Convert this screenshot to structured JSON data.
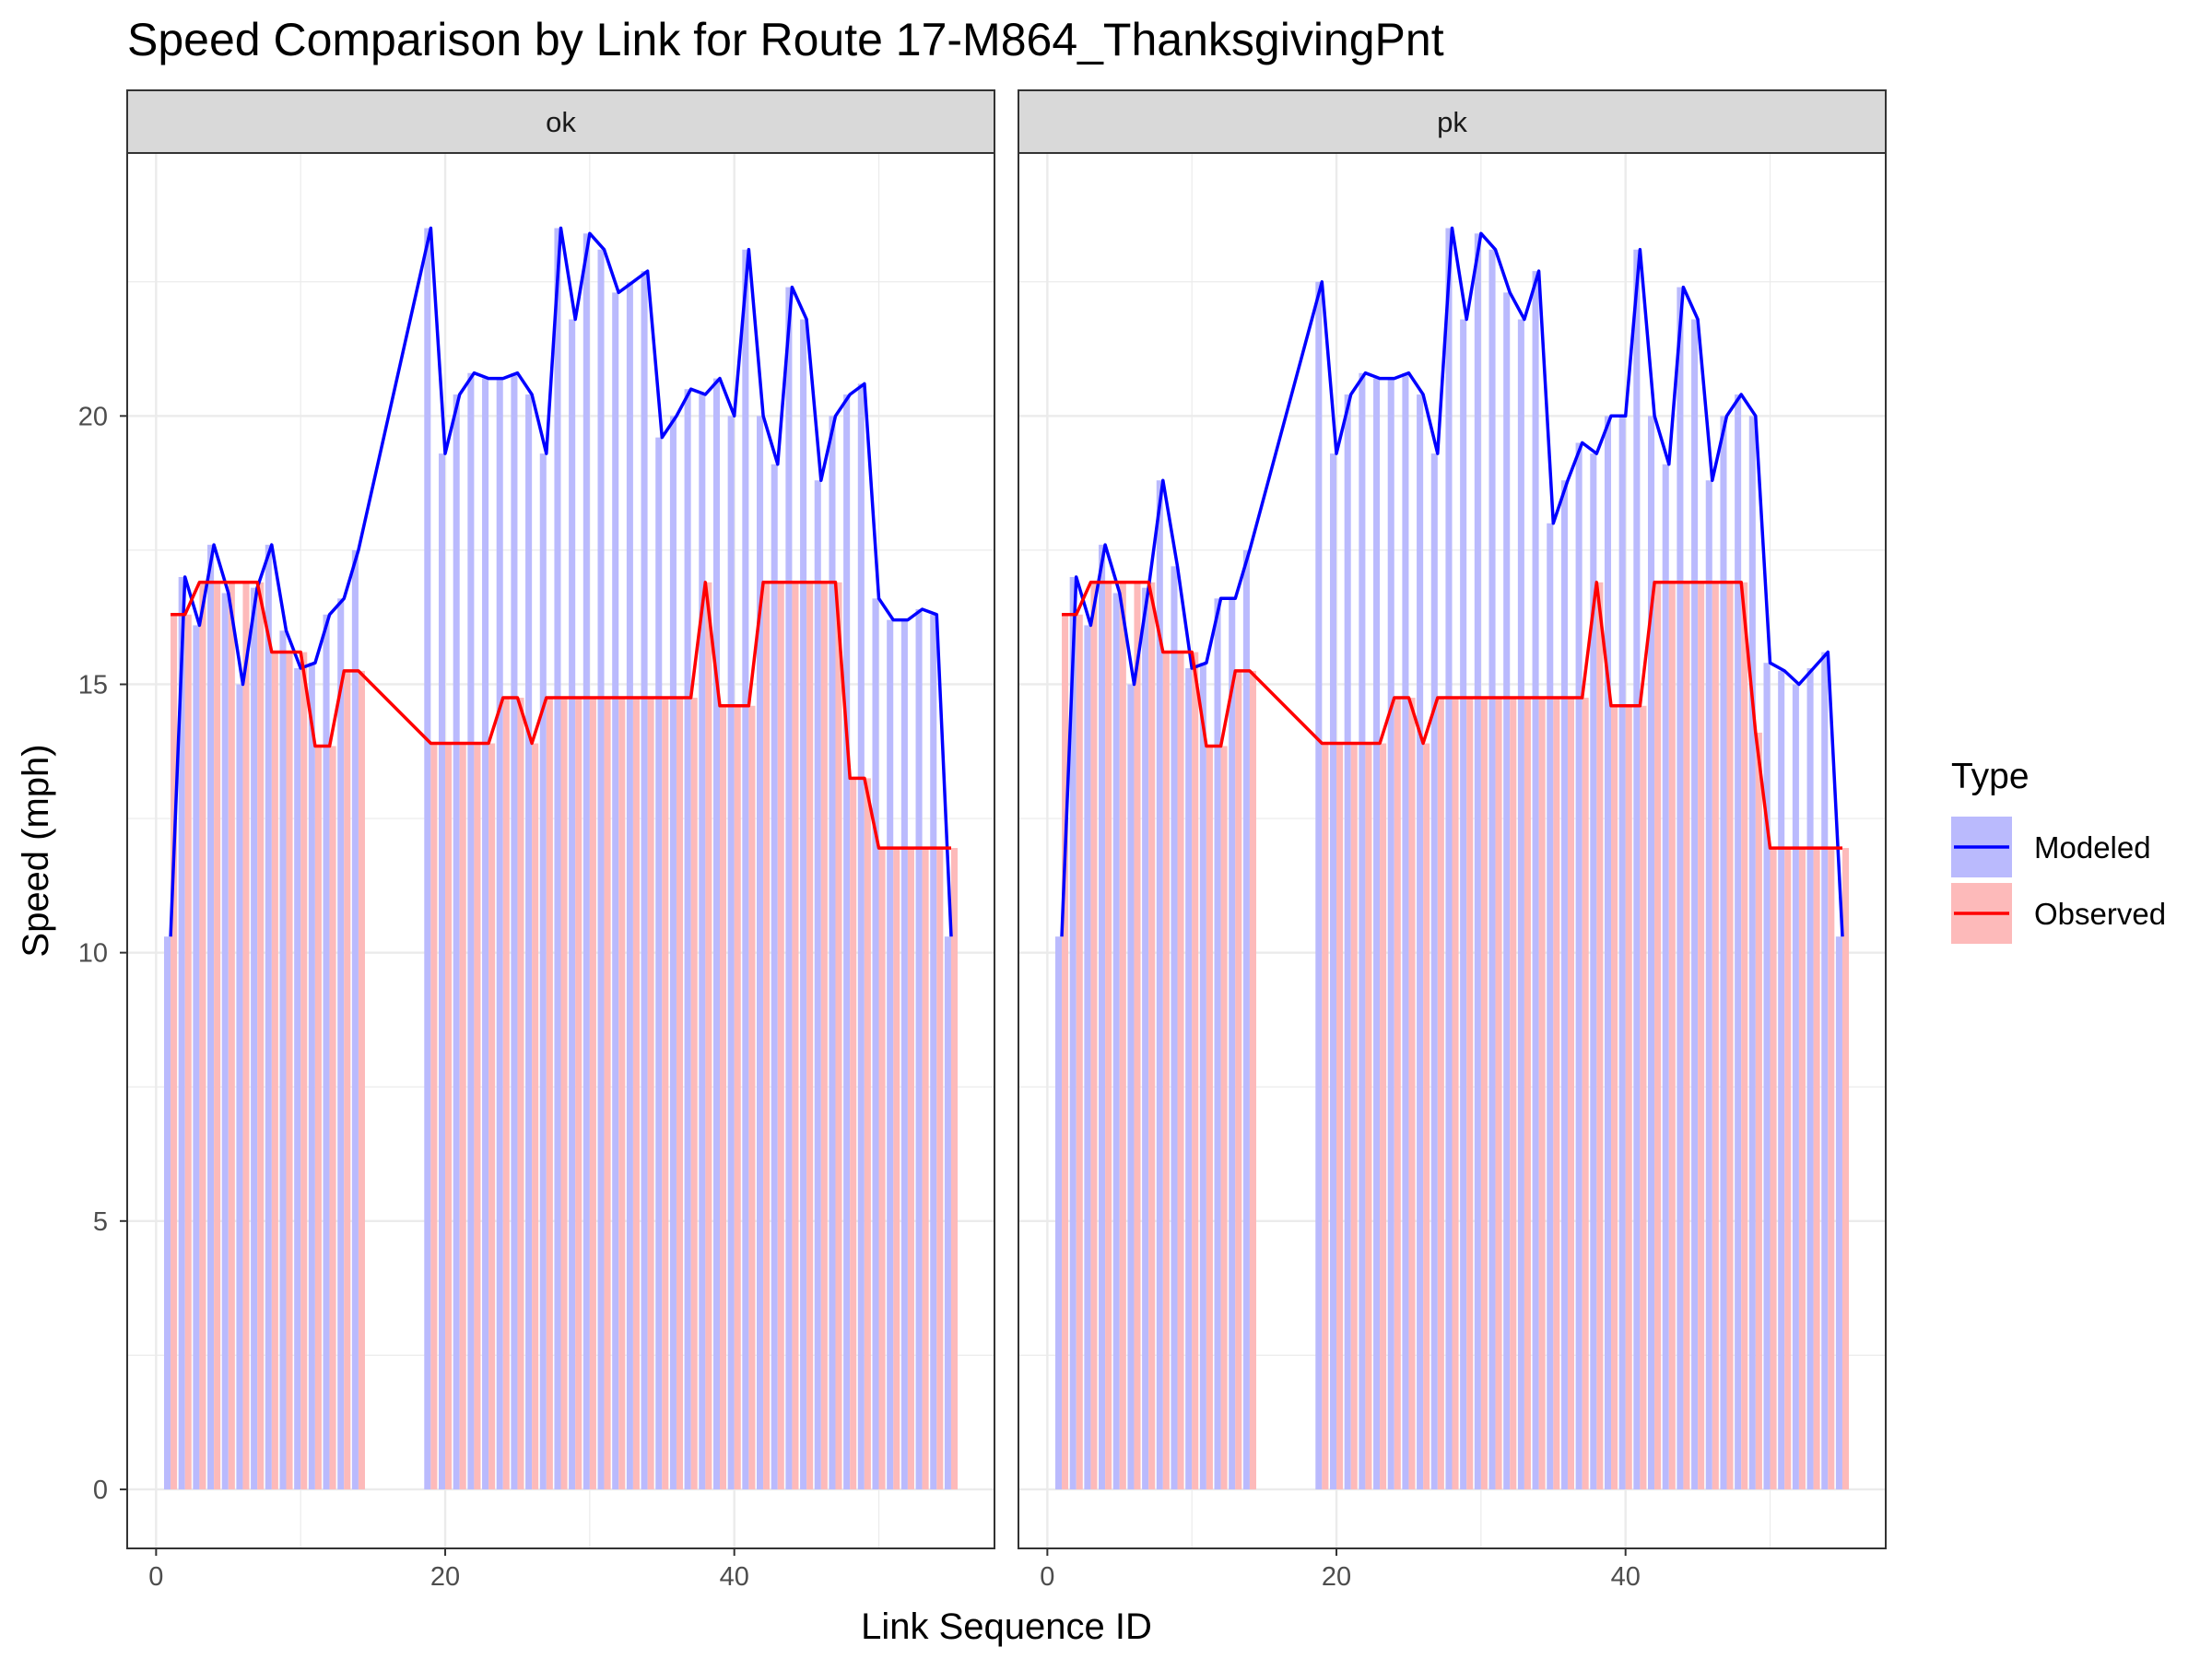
{
  "chart_data": {
    "type": "bar",
    "title": "Speed Comparison by Link for Route 17-M864_ThanksgivingPnt",
    "xlabel": "Link Sequence ID",
    "ylabel": "Speed (mph)",
    "xlim": [
      -2,
      58
    ],
    "ylim": [
      -1.1,
      24.9
    ],
    "x_ticks": [
      0,
      20,
      40
    ],
    "y_ticks": [
      0,
      5,
      10,
      15,
      20
    ],
    "grid": true,
    "legend": {
      "title": "Type",
      "position": "right",
      "entries": [
        "Modeled",
        "Observed"
      ]
    },
    "colors": {
      "Modeled": "#0000ff",
      "Observed": "#ff0000",
      "Modeled_fill": "#babafd",
      "Observed_fill": "#fdbaba",
      "strip": "#d9d9d9",
      "grid": "#ebebeb"
    },
    "panels": [
      {
        "label": "ok",
        "series": [
          {
            "name": "Modeled",
            "x": [
              1,
              2,
              3,
              4,
              5,
              6,
              7,
              8,
              9,
              10,
              11,
              12,
              13,
              14,
              19,
              20,
              21,
              22,
              23,
              24,
              25,
              26,
              27,
              28,
              29,
              30,
              31,
              32,
              33,
              34,
              35,
              36,
              37,
              38,
              39,
              40,
              41,
              42,
              43,
              44,
              45,
              46,
              47,
              48,
              49,
              50,
              51,
              52,
              53,
              54,
              55
            ],
            "values": [
              10.3,
              17.0,
              16.1,
              17.6,
              16.7,
              15.0,
              16.8,
              17.6,
              16.0,
              15.3,
              15.4,
              16.3,
              16.6,
              17.5,
              23.5,
              19.3,
              20.4,
              20.8,
              20.7,
              20.7,
              20.8,
              20.4,
              19.3,
              23.5,
              21.8,
              23.4,
              23.1,
              22.3,
              22.5,
              22.7,
              19.6,
              20.0,
              20.5,
              20.4,
              20.7,
              20.0,
              23.1,
              20.0,
              19.1,
              22.4,
              21.8,
              18.8,
              20.0,
              20.4,
              20.6,
              16.6,
              16.2,
              16.2,
              16.4,
              16.3,
              10.3
            ]
          },
          {
            "name": "Observed",
            "x": [
              1,
              2,
              3,
              4,
              5,
              6,
              7,
              8,
              9,
              10,
              11,
              12,
              13,
              14,
              19,
              20,
              21,
              22,
              23,
              24,
              25,
              26,
              27,
              28,
              29,
              30,
              31,
              32,
              33,
              34,
              35,
              36,
              37,
              38,
              39,
              40,
              41,
              42,
              43,
              44,
              45,
              46,
              47,
              48,
              49,
              50,
              51,
              52,
              53,
              54,
              55
            ],
            "values": [
              16.3,
              16.3,
              16.9,
              16.9,
              16.9,
              16.9,
              16.9,
              15.6,
              15.6,
              15.6,
              13.85,
              13.85,
              15.25,
              15.25,
              13.9,
              13.9,
              13.9,
              13.9,
              13.9,
              14.75,
              14.75,
              13.9,
              14.75,
              14.75,
              14.75,
              14.75,
              14.75,
              14.75,
              14.75,
              14.75,
              14.75,
              14.75,
              14.75,
              16.9,
              14.6,
              14.6,
              14.6,
              16.9,
              16.9,
              16.9,
              16.9,
              16.9,
              16.9,
              13.25,
              13.25,
              11.95,
              11.95,
              11.95,
              11.95,
              11.95,
              11.95
            ]
          }
        ]
      },
      {
        "label": "pk",
        "series": [
          {
            "name": "Modeled",
            "x": [
              1,
              2,
              3,
              4,
              5,
              6,
              7,
              8,
              9,
              10,
              11,
              12,
              13,
              14,
              19,
              20,
              21,
              22,
              23,
              24,
              25,
              26,
              27,
              28,
              29,
              30,
              31,
              32,
              33,
              34,
              35,
              36,
              37,
              38,
              39,
              40,
              41,
              42,
              43,
              44,
              45,
              46,
              47,
              48,
              49,
              50,
              51,
              52,
              53,
              54,
              55
            ],
            "values": [
              10.3,
              17.0,
              16.1,
              17.6,
              16.7,
              15.0,
              16.8,
              18.8,
              17.2,
              15.3,
              15.4,
              16.6,
              16.6,
              17.5,
              22.5,
              19.3,
              20.4,
              20.8,
              20.7,
              20.7,
              20.8,
              20.4,
              19.3,
              23.5,
              21.8,
              23.4,
              23.1,
              22.3,
              21.8,
              22.7,
              18.0,
              18.8,
              19.5,
              19.3,
              20.0,
              20.0,
              23.1,
              20.0,
              19.1,
              22.4,
              21.8,
              18.8,
              20.0,
              20.4,
              20.0,
              15.4,
              15.25,
              15.0,
              15.3,
              15.6,
              10.3
            ]
          },
          {
            "name": "Observed",
            "x": [
              1,
              2,
              3,
              4,
              5,
              6,
              7,
              8,
              9,
              10,
              11,
              12,
              13,
              14,
              19,
              20,
              21,
              22,
              23,
              24,
              25,
              26,
              27,
              28,
              29,
              30,
              31,
              32,
              33,
              34,
              35,
              36,
              37,
              38,
              39,
              40,
              41,
              42,
              43,
              44,
              45,
              46,
              47,
              48,
              49,
              50,
              51,
              52,
              53,
              54,
              55
            ],
            "values": [
              16.3,
              16.3,
              16.9,
              16.9,
              16.9,
              16.9,
              16.9,
              15.6,
              15.6,
              15.6,
              13.85,
              13.85,
              15.25,
              15.25,
              13.9,
              13.9,
              13.9,
              13.9,
              13.9,
              14.75,
              14.75,
              13.9,
              14.75,
              14.75,
              14.75,
              14.75,
              14.75,
              14.75,
              14.75,
              14.75,
              14.75,
              14.75,
              14.75,
              16.9,
              14.6,
              14.6,
              14.6,
              16.9,
              16.9,
              16.9,
              16.9,
              16.9,
              16.9,
              16.9,
              14.1,
              11.95,
              11.95,
              11.95,
              11.95,
              11.95,
              11.95
            ]
          }
        ]
      }
    ]
  }
}
